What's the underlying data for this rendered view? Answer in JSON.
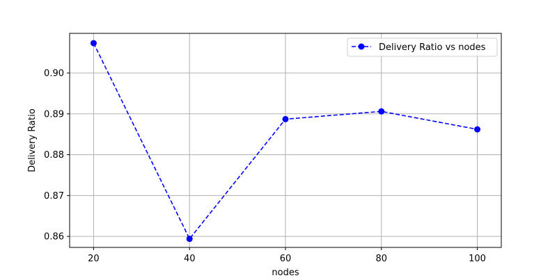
{
  "chart_data": {
    "type": "line",
    "title": "",
    "xlabel": "nodes",
    "ylabel": "Delivery Ratio",
    "x": [
      20,
      40,
      60,
      80,
      100
    ],
    "x_ticks": [
      "20",
      "40",
      "60",
      "80",
      "100"
    ],
    "y_ticks": [
      "0.86",
      "0.87",
      "0.88",
      "0.89",
      "0.90"
    ],
    "xlim": [
      15,
      105
    ],
    "ylim": [
      0.8573,
      0.9097
    ],
    "grid": true,
    "legend_position": "top-right",
    "series": [
      {
        "name": "Delivery Ratio vs nodes",
        "color": "#0000ff",
        "line_style": "dashed",
        "marker": "circle",
        "values": [
          0.9073,
          0.8594,
          0.8887,
          0.8906,
          0.8862
        ]
      }
    ]
  }
}
